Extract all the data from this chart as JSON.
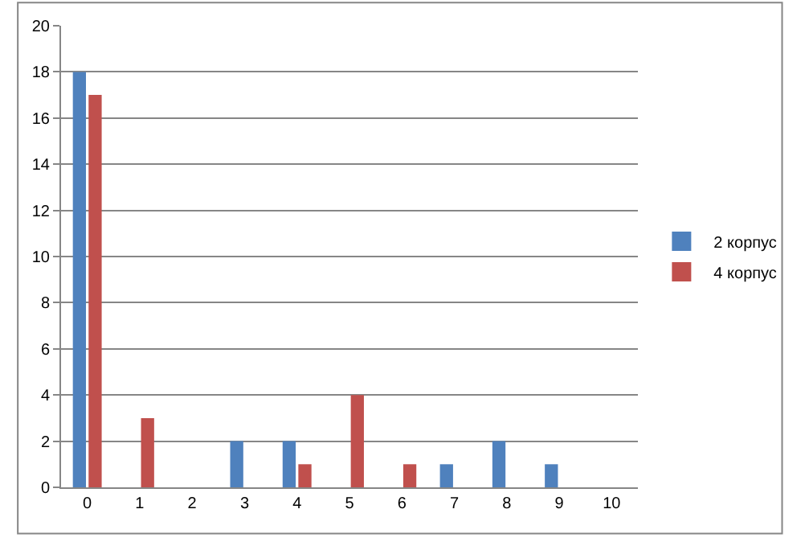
{
  "chart_data": {
    "type": "bar",
    "categories": [
      "0",
      "1",
      "2",
      "3",
      "4",
      "5",
      "6",
      "7",
      "8",
      "9",
      "10"
    ],
    "series": [
      {
        "name": "2 корпус",
        "color": "#4f81bd",
        "values": [
          18,
          0,
          0,
          2,
          2,
          0,
          0,
          1,
          2,
          1,
          0
        ]
      },
      {
        "name": "4 корпус",
        "color": "#c0504d",
        "values": [
          17,
          3,
          0,
          0,
          1,
          4,
          1,
          0,
          0,
          0,
          0
        ]
      }
    ],
    "ylim": [
      0,
      20
    ],
    "yticks": [
      0,
      2,
      4,
      6,
      8,
      10,
      12,
      14,
      16,
      18,
      20
    ],
    "grid": "y",
    "legend": "right"
  }
}
